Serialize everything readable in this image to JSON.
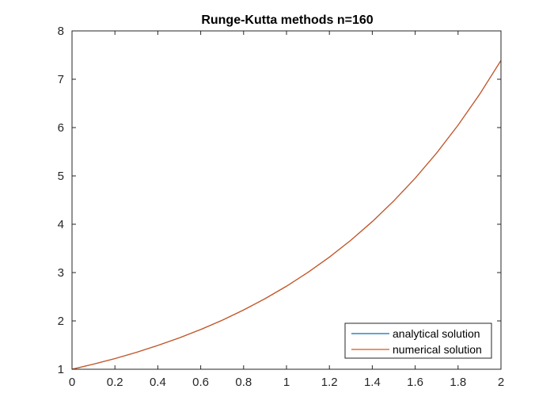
{
  "chart_data": {
    "type": "line",
    "title": "Runge-Kutta methods  n=160",
    "xlabel": "",
    "ylabel": "",
    "xlim": [
      0,
      2
    ],
    "ylim": [
      1,
      8
    ],
    "xticks": [
      "0",
      "0.2",
      "0.4",
      "0.6",
      "0.8",
      "1",
      "1.2",
      "1.4",
      "1.6",
      "1.8",
      "2"
    ],
    "yticks": [
      "1",
      "2",
      "3",
      "4",
      "5",
      "6",
      "7",
      "8"
    ],
    "grid": false,
    "legend_position": "bottom-right",
    "series": [
      {
        "name": "analytical solution",
        "color": "#0072BD",
        "x": [
          0,
          0.1,
          0.2,
          0.3,
          0.4,
          0.5,
          0.6,
          0.7,
          0.8,
          0.9,
          1.0,
          1.1,
          1.2,
          1.3,
          1.4,
          1.5,
          1.6,
          1.7,
          1.8,
          1.9,
          2.0
        ],
        "y": [
          1.0,
          1.105,
          1.221,
          1.35,
          1.492,
          1.649,
          1.822,
          2.014,
          2.226,
          2.46,
          2.718,
          3.004,
          3.32,
          3.669,
          4.055,
          4.482,
          4.953,
          5.474,
          6.05,
          6.686,
          7.389
        ]
      },
      {
        "name": "numerical solution",
        "color": "#D95319",
        "x": [
          0,
          0.1,
          0.2,
          0.3,
          0.4,
          0.5,
          0.6,
          0.7,
          0.8,
          0.9,
          1.0,
          1.1,
          1.2,
          1.3,
          1.4,
          1.5,
          1.6,
          1.7,
          1.8,
          1.9,
          2.0
        ],
        "y": [
          1.0,
          1.105,
          1.221,
          1.35,
          1.492,
          1.649,
          1.822,
          2.014,
          2.226,
          2.46,
          2.718,
          3.004,
          3.32,
          3.669,
          4.055,
          4.482,
          4.953,
          5.474,
          6.05,
          6.686,
          7.389
        ]
      }
    ]
  }
}
